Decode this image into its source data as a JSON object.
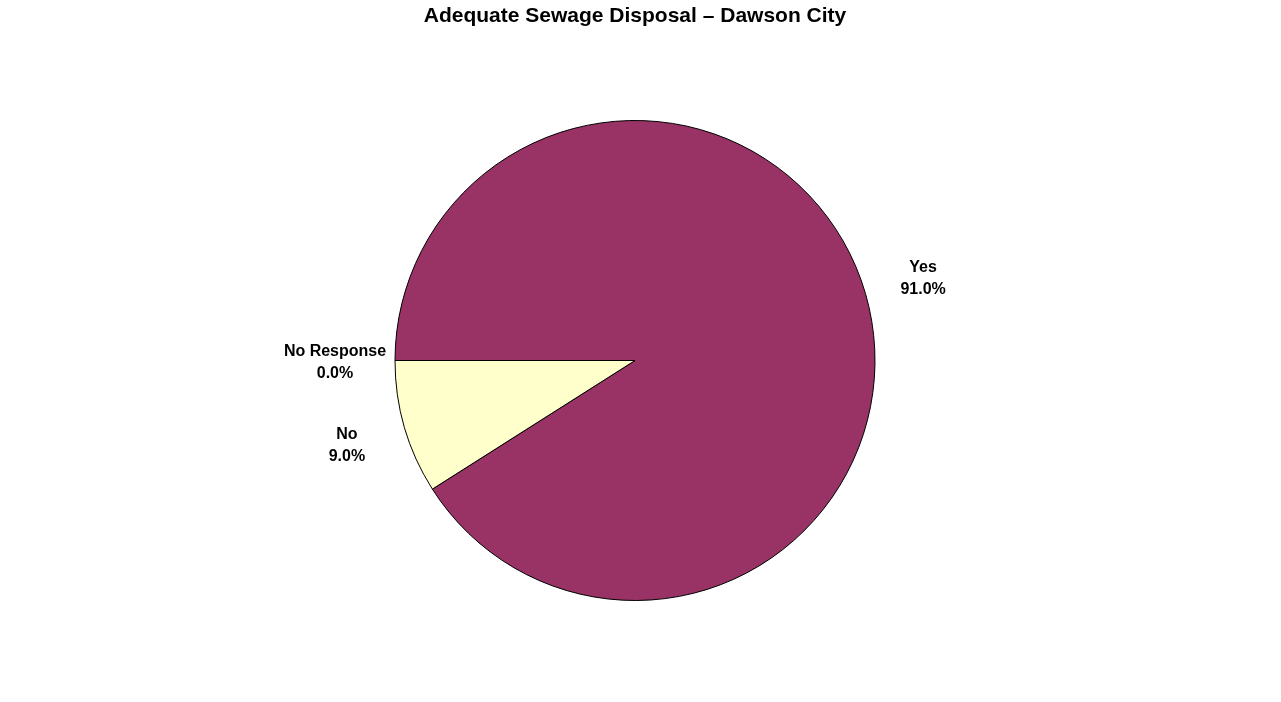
{
  "chart_data": {
    "type": "pie",
    "title": "Adequate Sewage Disposal – Dawson City",
    "categories": [
      "Yes",
      "No",
      "No Response"
    ],
    "values": [
      91.0,
      9.0,
      0.0
    ],
    "value_labels": [
      "91.0%",
      "9.0%",
      "0.0%"
    ],
    "colors": [
      "#993366",
      "#ffffcc",
      "#99ccff"
    ],
    "legend": false
  }
}
